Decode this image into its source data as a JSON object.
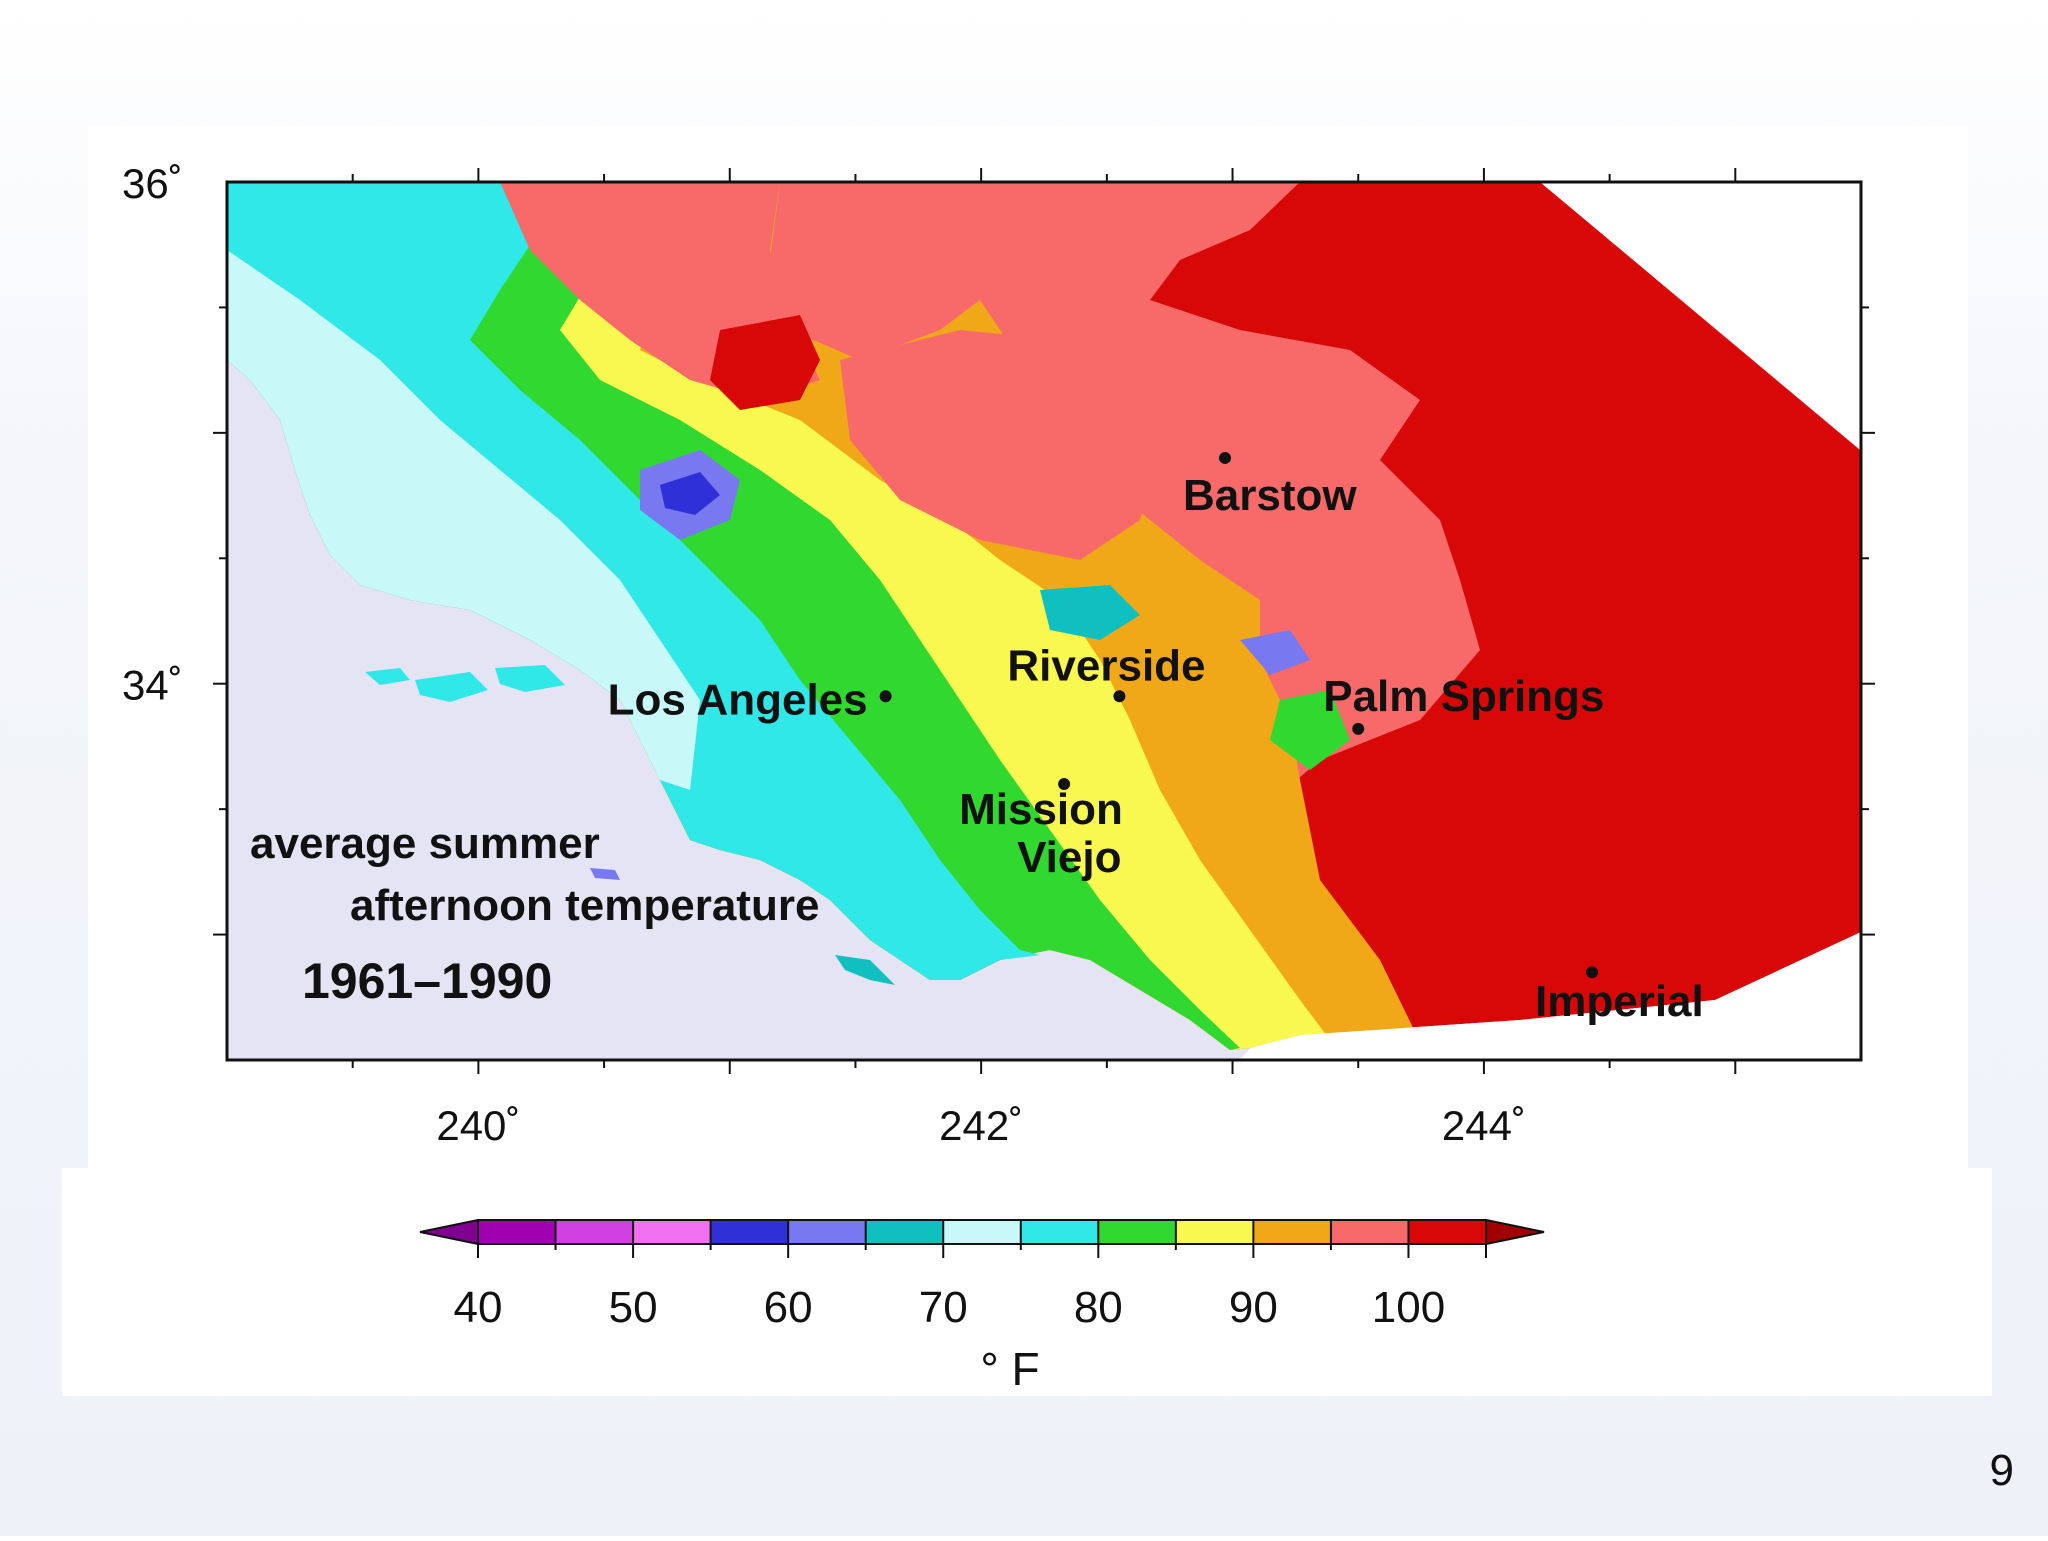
{
  "slide": {
    "number": "9"
  },
  "map": {
    "caption_line1": "average summer",
    "caption_line2": "afternoon temperature",
    "period": "1961–1990",
    "lat_ticks": [
      {
        "value": 36,
        "label": "36˚"
      },
      {
        "value": 34,
        "label": "34˚"
      }
    ],
    "lon_ticks": [
      {
        "value": 240,
        "label": "240˚"
      },
      {
        "value": 242,
        "label": "242˚"
      },
      {
        "value": 244,
        "label": "244˚"
      }
    ],
    "cities": [
      {
        "name": "Barstow",
        "lon": 242.97,
        "lat": 34.9
      },
      {
        "name": "Riverside",
        "lon": 242.55,
        "lat": 33.95
      },
      {
        "name": "Los Angeles",
        "lon": 241.62,
        "lat": 33.95
      },
      {
        "name": "Palm Springs",
        "lon": 243.5,
        "lat": 33.82
      },
      {
        "name": "Mission",
        "lon": 242.33,
        "lat": 33.6
      },
      {
        "name": "Viejo",
        "lon": 242.33,
        "lat": 33.6
      },
      {
        "name": "Imperial",
        "lon": 244.43,
        "lat": 32.85
      }
    ]
  },
  "colorbar": {
    "unit": "° F",
    "tick_labels": [
      "40",
      "50",
      "60",
      "70",
      "80",
      "90",
      "100"
    ],
    "bins": [
      {
        "from": 40,
        "to": 45,
        "color": "#a000b0"
      },
      {
        "from": 45,
        "to": 50,
        "color": "#d040e0"
      },
      {
        "from": 50,
        "to": 55,
        "color": "#f070f0"
      },
      {
        "from": 55,
        "to": 60,
        "color": "#3030d8"
      },
      {
        "from": 60,
        "to": 65,
        "color": "#7878f0"
      },
      {
        "from": 65,
        "to": 70,
        "color": "#10c0c0"
      },
      {
        "from": 70,
        "to": 75,
        "color": "#c8f8f8"
      },
      {
        "from": 75,
        "to": 80,
        "color": "#30e8e8"
      },
      {
        "from": 80,
        "to": 85,
        "color": "#30d830"
      },
      {
        "from": 85,
        "to": 90,
        "color": "#f8f850"
      },
      {
        "from": 90,
        "to": 95,
        "color": "#f0a818"
      },
      {
        "from": 95,
        "to": 100,
        "color": "#f86a6a"
      },
      {
        "from": 100,
        "to": 105,
        "color": "#d80808"
      }
    ],
    "under_color": "#800090",
    "over_color": "#a00000"
  }
}
